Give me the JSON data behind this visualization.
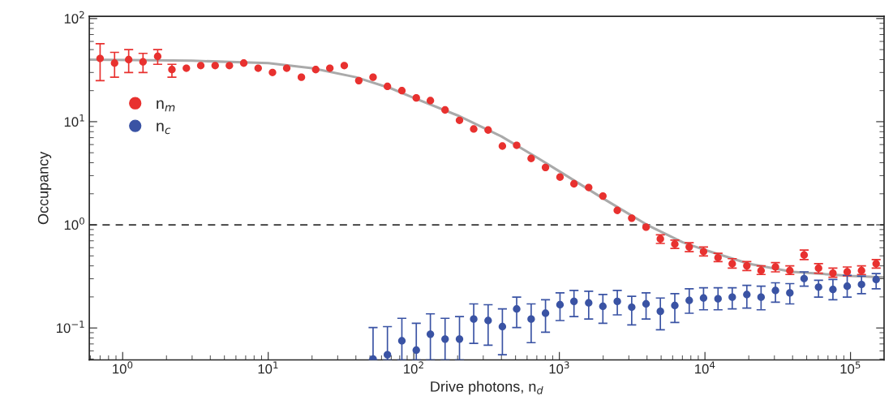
{
  "chart_data": {
    "type": "scatter",
    "log": "xy",
    "xlabel": "Drive photons, n$_{d}$",
    "ylabel": "Occupancy",
    "xlim": [
      0.59,
      170000
    ],
    "ylim": [
      0.049,
      105
    ],
    "xticks": [
      {
        "value": 1,
        "label": "10$^{0}$"
      },
      {
        "value": 10,
        "label": "10$^{1}$"
      },
      {
        "value": 100,
        "label": "10$^{2}$"
      },
      {
        "value": 1000,
        "label": "10$^{3}$"
      },
      {
        "value": 10000,
        "label": "10$^{4}$"
      },
      {
        "value": 100000,
        "label": "10$^{5}$"
      }
    ],
    "yticks": [
      {
        "value": 0.1,
        "label": "10$^{−1}$"
      },
      {
        "value": 1,
        "label": "10$^{0}$"
      },
      {
        "value": 10,
        "label": "10$^{1}$"
      },
      {
        "value": 100,
        "label": "10$^{2}$"
      }
    ],
    "grid": false,
    "legend": "left",
    "marker": "circle",
    "ref_lines": [
      {
        "axis": "y",
        "value": 1,
        "color": "#333333",
        "line_style": "dashed"
      }
    ],
    "series": [
      {
        "type": "line",
        "color": "#aaaaaa",
        "marker": "none",
        "x": [
          0.59,
          3,
          10,
          20,
          40,
          70,
          100,
          200,
          400,
          700,
          1000,
          2000,
          4000,
          7000,
          10000,
          20000,
          40000,
          100000,
          170000
        ],
        "values": [
          40,
          39,
          37,
          33,
          27,
          21,
          17,
          11.5,
          7.2,
          4.5,
          3.3,
          1.8,
          1.0,
          0.68,
          0.57,
          0.42,
          0.35,
          0.32,
          0.31
        ]
      },
      {
        "name": "n$_{m}$",
        "color": "#e8312f",
        "x": [
          0.7,
          0.88,
          1.1,
          1.38,
          1.74,
          2.18,
          2.74,
          3.44,
          4.32,
          5.41,
          6.79,
          8.53,
          10.7,
          13.4,
          16.9,
          21.2,
          26.5,
          33.3,
          41.9,
          52.5,
          65.9,
          82.8,
          104,
          130,
          164,
          206,
          258,
          324,
          406,
          509,
          640,
          803,
          1010,
          1260,
          1590,
          1990,
          2500,
          3140,
          3940,
          4940,
          6210,
          7800,
          9780,
          12300,
          15400,
          19400,
          24300,
          30500,
          38300,
          48000,
          60300,
          75700,
          94900,
          119000,
          150000
        ],
        "values": [
          41,
          37,
          40,
          38,
          43,
          32,
          33,
          35,
          35,
          35,
          37,
          33,
          30,
          33,
          27,
          32,
          33,
          35,
          25,
          27,
          22,
          20,
          17,
          16,
          13,
          10.3,
          8.5,
          8.3,
          5.8,
          5.9,
          4.4,
          3.6,
          2.9,
          2.5,
          2.3,
          1.9,
          1.38,
          1.16,
          0.95,
          0.73,
          0.65,
          0.61,
          0.55,
          0.48,
          0.42,
          0.4,
          0.36,
          0.39,
          0.36,
          0.51,
          0.38,
          0.34,
          0.35,
          0.36,
          0.42
        ],
        "errors": [
          [
            25,
            57
          ],
          [
            27,
            47
          ],
          [
            30,
            50
          ],
          [
            30,
            46
          ],
          [
            36,
            50
          ],
          [
            27,
            36
          ],
          null,
          null,
          null,
          null,
          null,
          null,
          null,
          null,
          null,
          null,
          null,
          null,
          null,
          null,
          null,
          null,
          null,
          null,
          null,
          null,
          null,
          null,
          null,
          null,
          null,
          null,
          null,
          null,
          null,
          null,
          null,
          null,
          null,
          [
            0.66,
            0.8
          ],
          [
            0.59,
            0.71
          ],
          [
            0.55,
            0.67
          ],
          [
            0.5,
            0.61
          ],
          [
            0.44,
            0.53
          ],
          [
            0.38,
            0.47
          ],
          [
            0.36,
            0.44
          ],
          [
            0.33,
            0.4
          ],
          [
            0.35,
            0.43
          ],
          [
            0.33,
            0.4
          ],
          [
            0.46,
            0.57
          ],
          [
            0.34,
            0.42
          ],
          [
            0.31,
            0.38
          ],
          [
            0.32,
            0.39
          ],
          [
            0.33,
            0.4
          ],
          [
            0.38,
            0.46
          ]
        ]
      },
      {
        "name": "n$_{c}$",
        "color": "#3a53a4",
        "x": [
          52.5,
          65.9,
          82.8,
          104,
          130,
          164,
          206,
          258,
          324,
          406,
          509,
          640,
          803,
          1010,
          1260,
          1590,
          1990,
          2500,
          3140,
          3940,
          4940,
          6210,
          7800,
          9780,
          12300,
          15400,
          19400,
          24300,
          30500,
          38300,
          48000,
          60300,
          75700,
          94900,
          119000,
          150000
        ],
        "values": [
          0.05,
          0.055,
          0.075,
          0.061,
          0.087,
          0.078,
          0.078,
          0.122,
          0.118,
          0.103,
          0.153,
          0.122,
          0.139,
          0.168,
          0.181,
          0.175,
          0.162,
          0.181,
          0.159,
          0.171,
          0.145,
          0.165,
          0.185,
          0.195,
          0.192,
          0.199,
          0.211,
          0.199,
          0.231,
          0.219,
          0.301,
          0.249,
          0.236,
          0.254,
          0.264,
          0.295
        ],
        "errors": [
          [
            0.049,
            0.101
          ],
          [
            0.049,
            0.103
          ],
          [
            0.049,
            0.124
          ],
          [
            0.049,
            0.111
          ],
          [
            0.049,
            0.137
          ],
          [
            0.049,
            0.124
          ],
          [
            0.049,
            0.129
          ],
          [
            0.071,
            0.171
          ],
          [
            0.068,
            0.168
          ],
          [
            0.055,
            0.153
          ],
          [
            0.101,
            0.199
          ],
          [
            0.072,
            0.171
          ],
          [
            0.091,
            0.188
          ],
          [
            0.118,
            0.219
          ],
          [
            0.129,
            0.231
          ],
          [
            0.122,
            0.227
          ],
          [
            0.111,
            0.211
          ],
          [
            0.134,
            0.231
          ],
          [
            0.107,
            0.203
          ],
          [
            0.122,
            0.219
          ],
          [
            0.096,
            0.195
          ],
          [
            0.113,
            0.215
          ],
          [
            0.139,
            0.24
          ],
          [
            0.15,
            0.245
          ],
          [
            0.15,
            0.245
          ],
          [
            0.153,
            0.245
          ],
          [
            0.156,
            0.259
          ],
          [
            0.15,
            0.254
          ],
          [
            0.178,
            0.274
          ],
          [
            0.171,
            0.269
          ],
          [
            0.254,
            0.35
          ],
          [
            0.199,
            0.29
          ],
          [
            0.188,
            0.295
          ],
          [
            0.199,
            0.324
          ],
          [
            0.215,
            0.318
          ],
          [
            0.24,
            0.337
          ]
        ]
      }
    ]
  }
}
